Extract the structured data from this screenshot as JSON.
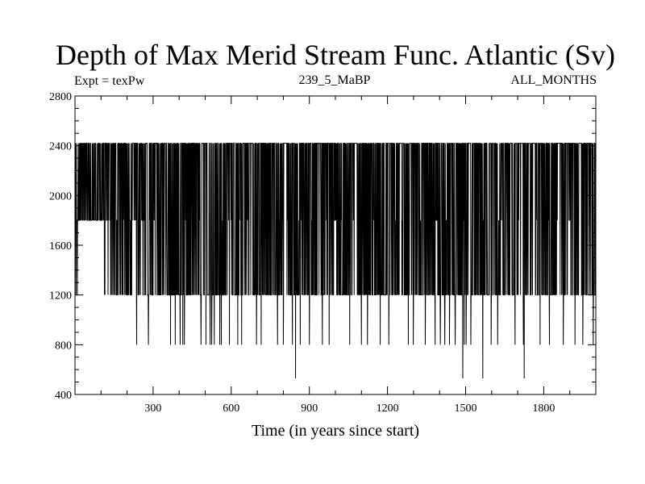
{
  "chart_data": {
    "type": "line",
    "title": "Depth of Max Merid Stream Func. Atlantic (Sv)",
    "subtitle_left": "Expt = texPw",
    "subtitle_center": "239_5_MaBP",
    "subtitle_right": "ALL_MONTHS",
    "xlabel": "Time (in years since start)",
    "ylabel": "",
    "xlim": [
      0,
      2000
    ],
    "ylim": [
      400,
      2800
    ],
    "x_ticks": [
      300,
      600,
      900,
      1200,
      1500,
      1800
    ],
    "y_ticks": [
      400,
      800,
      1200,
      1600,
      2000,
      2400,
      2800
    ],
    "depth_levels": [
      530,
      800,
      1200,
      1800,
      2420
    ],
    "series": [
      {
        "name": "depth of max stream function",
        "description": "annual series oscillating mostly between 1200 and 2420 m, with drops to 800 m and occasional minima near 530 m",
        "min_points": [
          [
            847,
            530
          ],
          [
            1489,
            530
          ],
          [
            1566,
            530
          ],
          [
            1725,
            530
          ]
        ],
        "drops_to_800": [
          237,
          282,
          367,
          385,
          404,
          414,
          420,
          484,
          503,
          519,
          525,
          535,
          556,
          562,
          593,
          625,
          640,
          697,
          715,
          778,
          800,
          835,
          865,
          900,
          950,
          976,
          1055,
          1100,
          1123,
          1172,
          1205,
          1280,
          1299,
          1345,
          1383,
          1403,
          1420,
          1438,
          1460,
          1495,
          1502,
          1520,
          1598,
          1623,
          1690,
          1722,
          1786,
          1822,
          1875,
          1920,
          1950,
          1990
        ]
      }
    ]
  }
}
